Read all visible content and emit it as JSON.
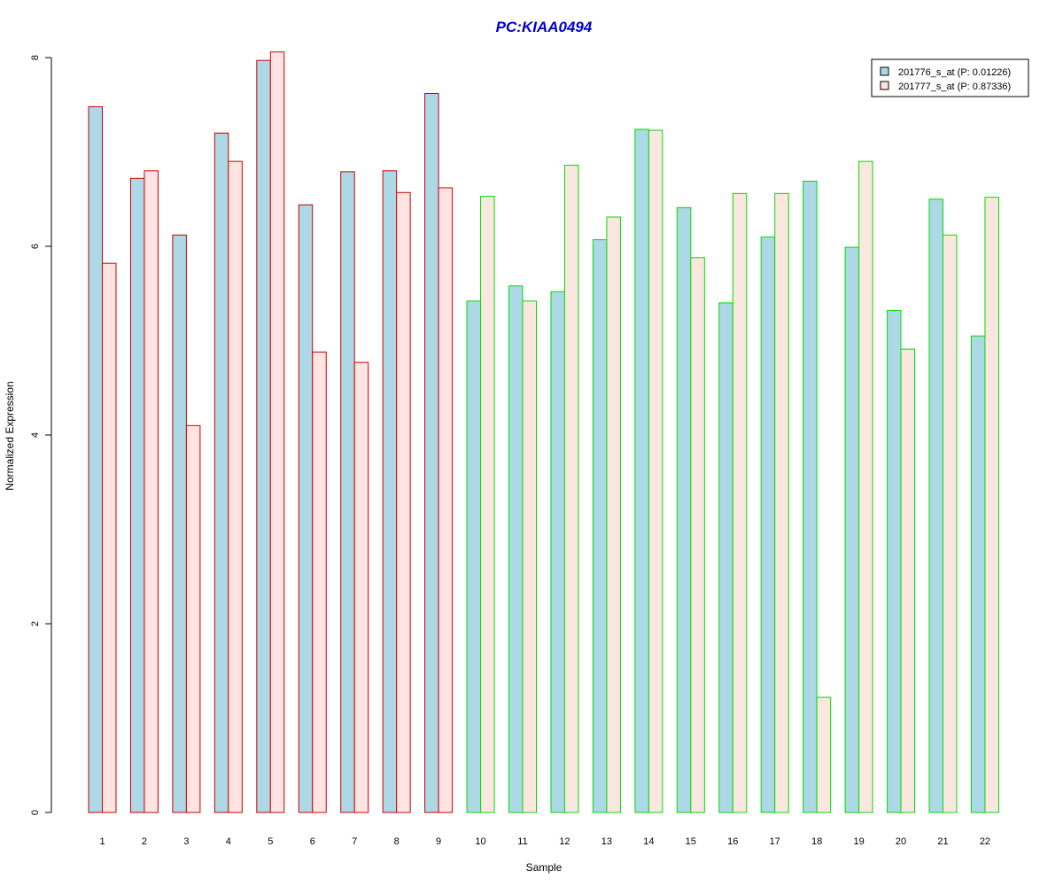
{
  "chart_data": {
    "type": "bar",
    "title": "PC:KIAA0494",
    "xlabel": "Sample",
    "ylabel": "Normalized Expression",
    "categories": [
      "1",
      "2",
      "3",
      "4",
      "5",
      "6",
      "7",
      "8",
      "9",
      "10",
      "11",
      "12",
      "13",
      "14",
      "15",
      "16",
      "17",
      "18",
      "19",
      "20",
      "21",
      "22"
    ],
    "series": [
      {
        "name": "201776_s_at (P: 0.01226)",
        "values": [
          7.48,
          6.72,
          6.12,
          7.2,
          7.97,
          6.44,
          6.79,
          6.8,
          7.62,
          5.42,
          5.58,
          5.52,
          6.07,
          7.24,
          6.41,
          5.4,
          6.1,
          6.69,
          5.99,
          5.32,
          6.5,
          5.05
        ]
      },
      {
        "name": "201777_s_at (P: 0.87336)",
        "values": [
          5.82,
          6.8,
          4.1,
          6.9,
          8.06,
          4.88,
          4.77,
          6.57,
          6.62,
          6.53,
          5.42,
          6.86,
          6.31,
          7.23,
          5.88,
          6.56,
          6.56,
          1.22,
          6.9,
          4.91,
          6.12,
          6.52
        ]
      }
    ],
    "group_border_colors": [
      "#cc0000",
      "#cc0000",
      "#cc0000",
      "#cc0000",
      "#cc0000",
      "#cc0000",
      "#cc0000",
      "#cc0000",
      "#cc0000",
      "#00dd00",
      "#00dd00",
      "#00dd00",
      "#00dd00",
      "#00dd00",
      "#00dd00",
      "#00dd00",
      "#00dd00",
      "#00dd00",
      "#00dd00",
      "#00dd00",
      "#00dd00",
      "#00dd00"
    ],
    "yticks": [
      "0",
      "2",
      "4",
      "6",
      "8"
    ],
    "ylim": [
      0,
      8.1
    ],
    "legend_position": "top-right",
    "grid": false,
    "colors": {
      "title": "#0000cc",
      "series1_fill": "#add8e6",
      "series2_fill_red_group": "#ffe4e1",
      "series2_fill_green_group": "#fae8e0",
      "legend_border": "#000000"
    }
  }
}
